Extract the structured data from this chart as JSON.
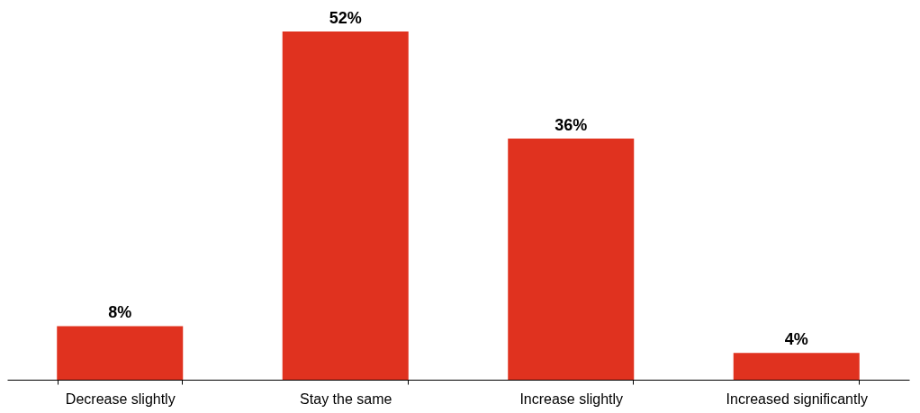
{
  "chart_data": {
    "type": "bar",
    "categories": [
      "Decrease slightly",
      "Stay the same",
      "Increase slightly",
      "Increased significantly"
    ],
    "values": [
      8,
      52,
      36,
      4
    ],
    "value_labels": [
      "8%",
      "52%",
      "36%",
      "4%"
    ],
    "color": "#e0321f",
    "grid": false
  }
}
